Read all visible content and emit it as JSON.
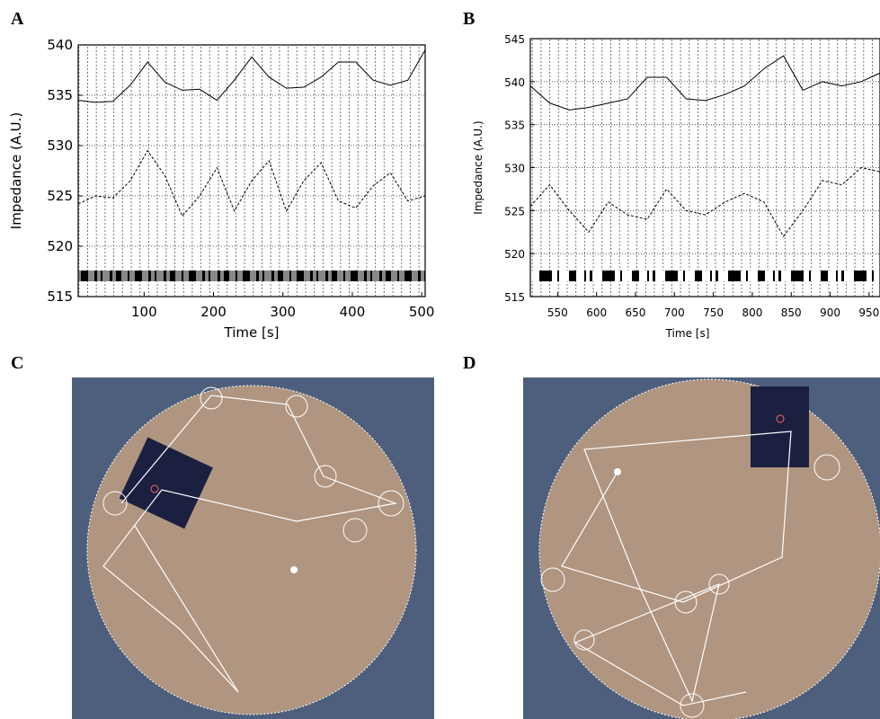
{
  "panel_labels": [
    "A",
    "B",
    "C",
    "D"
  ],
  "chart_data": [
    {
      "type": "line",
      "ylabel": "Impedance (A.U.)",
      "xlabel": "Time [s]",
      "x": [
        5,
        30,
        55,
        80,
        105,
        130,
        155,
        180,
        205,
        230,
        255,
        280,
        305,
        330,
        355,
        380,
        405,
        430,
        455,
        480,
        505
      ],
      "series": [
        {
          "color": "#000000",
          "linestyle": "solid",
          "values": [
            534.5,
            534.3,
            534.4,
            536,
            538.3,
            536.3,
            535.5,
            535.6,
            534.5,
            536.5,
            538.8,
            536.8,
            535.7,
            535.8,
            536.8,
            538.3,
            538.3,
            536.5,
            536,
            536.5,
            539.5
          ]
        },
        {
          "color": "#000000",
          "linestyle": "dashed",
          "values": [
            524.2,
            525,
            524.8,
            526.5,
            529.5,
            527,
            523,
            525,
            527.8,
            523.5,
            526.5,
            528.5,
            523.5,
            526.5,
            528.3,
            524.5,
            523.8,
            526,
            527.3,
            524.5,
            525
          ]
        }
      ],
      "xlim": [
        5,
        505
      ],
      "xticks": [
        100,
        200,
        300,
        400,
        500
      ],
      "ylim": [
        515,
        540
      ],
      "yticks": [
        515,
        520,
        525,
        530,
        535,
        540
      ],
      "grid": true
    },
    {
      "type": "line",
      "ylabel": "Impedance (A.U.)",
      "xlabel": "Time [s]",
      "x": [
        515,
        540,
        565,
        590,
        615,
        640,
        665,
        690,
        715,
        740,
        765,
        790,
        815,
        840,
        865,
        890,
        915,
        940,
        964
      ],
      "series": [
        {
          "color": "#000000",
          "linestyle": "solid",
          "values": [
            539.5,
            537.5,
            536.7,
            537,
            537.5,
            538,
            540.5,
            540.5,
            538,
            537.8,
            538.5,
            539.5,
            541.5,
            543,
            539,
            540,
            539.5,
            540,
            541
          ]
        },
        {
          "color": "#000000",
          "linestyle": "dashed",
          "values": [
            525.5,
            528,
            525,
            522.5,
            526,
            524.5,
            524,
            527.5,
            525,
            524.5,
            526,
            527,
            526,
            522,
            525,
            528.5,
            528,
            530,
            529.5
          ]
        }
      ],
      "xlim": [
        515,
        964
      ],
      "xticks": [
        550,
        600,
        650,
        700,
        750,
        800,
        850,
        900,
        950
      ],
      "ylim": [
        515,
        545
      ],
      "yticks": [
        515,
        520,
        525,
        530,
        535,
        540,
        545
      ],
      "grid": true
    }
  ]
}
